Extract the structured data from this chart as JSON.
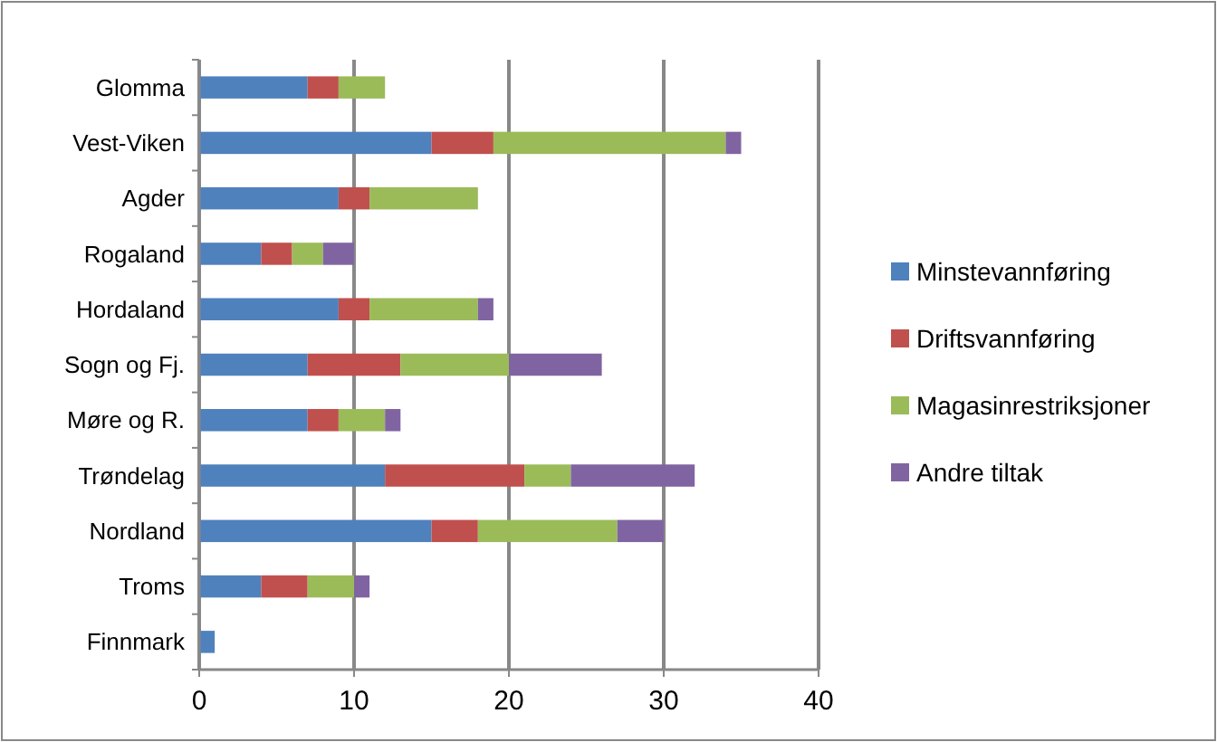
{
  "chart_data": {
    "type": "bar",
    "orientation": "horizontal",
    "stacked": true,
    "categories": [
      "Glomma",
      "Vest-Viken",
      "Agder",
      "Rogaland",
      "Hordaland",
      "Sogn og Fj.",
      "Møre og R.",
      "Trøndelag",
      "Nordland",
      "Troms",
      "Finnmark"
    ],
    "series": [
      {
        "name": "Minstevannføring",
        "color": "#4f81bd",
        "values": [
          7,
          15,
          9,
          4,
          9,
          7,
          7,
          12,
          15,
          4,
          1
        ]
      },
      {
        "name": "Driftsvannføring",
        "color": "#c0504d",
        "values": [
          2,
          4,
          2,
          2,
          2,
          6,
          2,
          9,
          3,
          3,
          0
        ]
      },
      {
        "name": "Magasinrestriksjoner",
        "color": "#9bbb59",
        "values": [
          3,
          15,
          7,
          2,
          7,
          7,
          3,
          3,
          9,
          3,
          0
        ]
      },
      {
        "name": "Andre tiltak",
        "color": "#8064a2",
        "values": [
          0,
          1,
          0,
          2,
          1,
          6,
          1,
          8,
          3,
          1,
          0
        ]
      }
    ],
    "xlim": [
      0,
      40
    ],
    "xticks": [
      0,
      10,
      20,
      30,
      40
    ],
    "grid": "x",
    "legend": "right"
  }
}
